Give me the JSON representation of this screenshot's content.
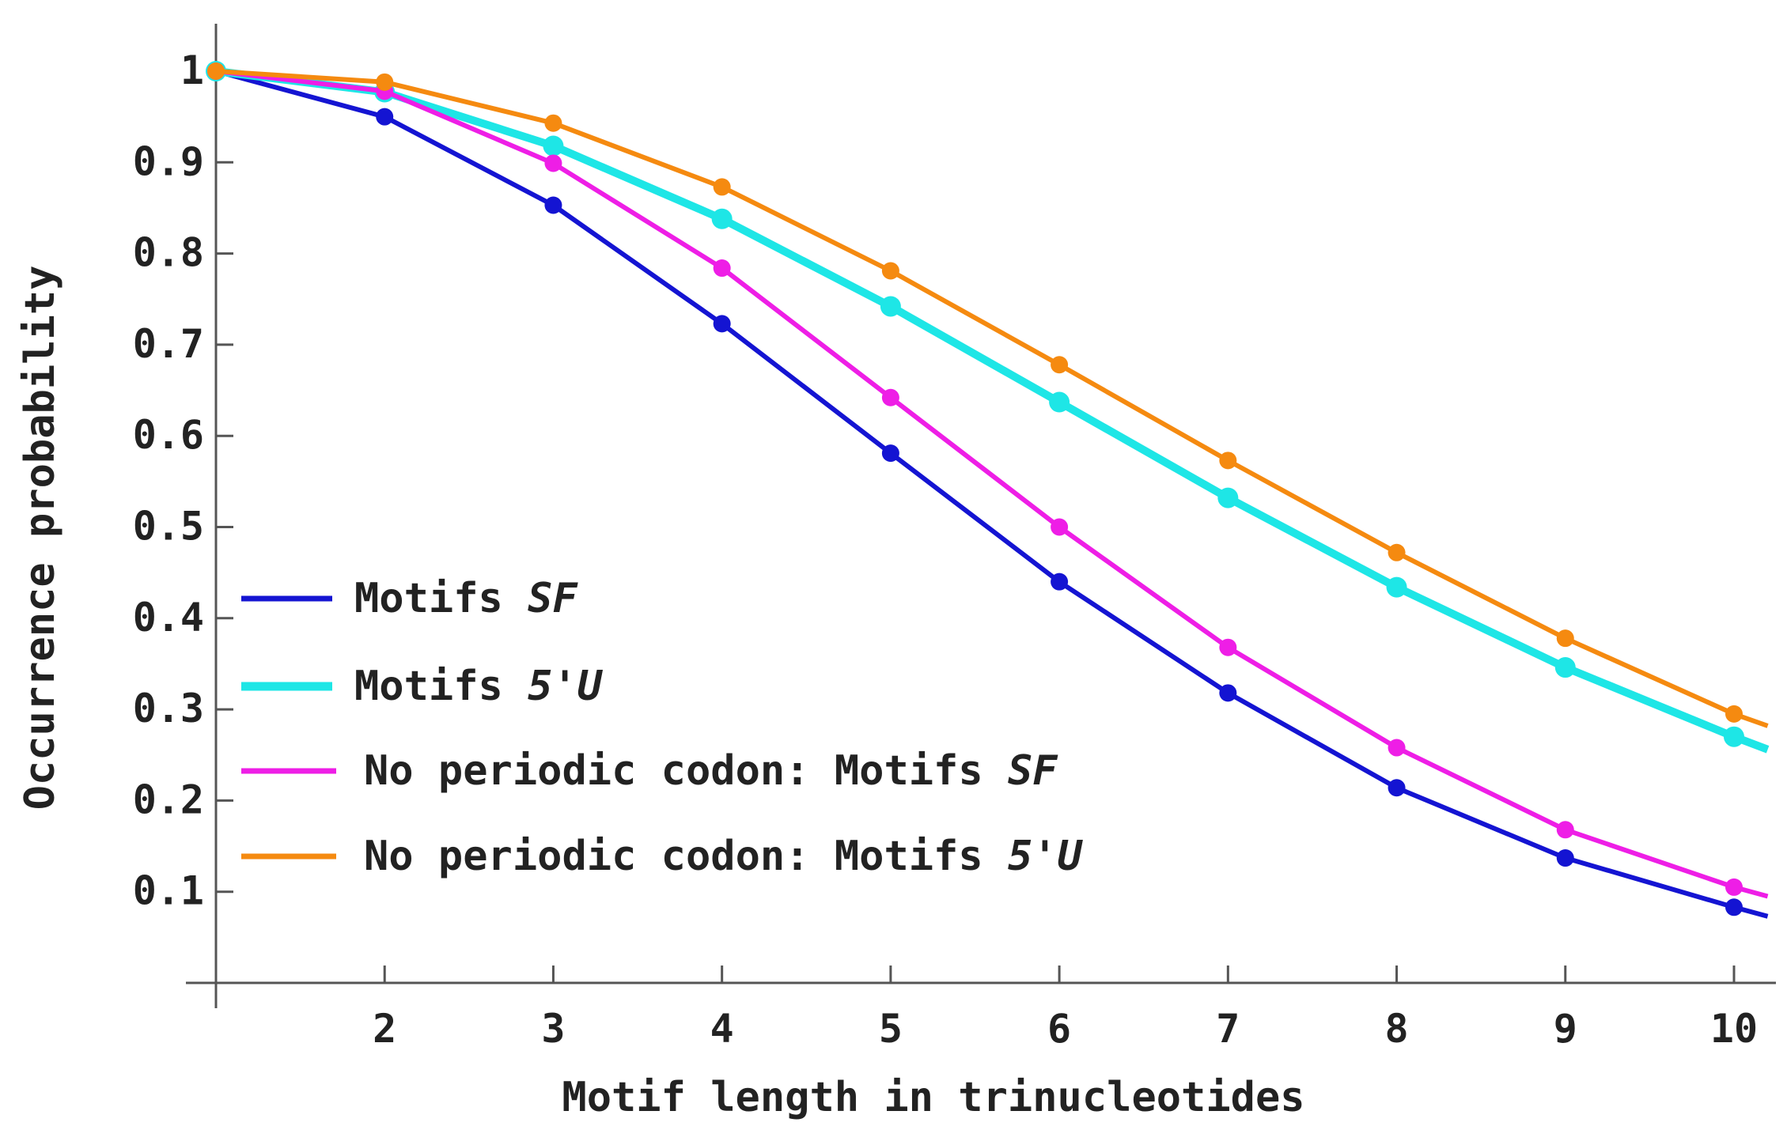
{
  "chart_data": {
    "type": "line",
    "title": "",
    "xlabel": "Motif length in trinucleotides",
    "ylabel": "Occurrence probability",
    "xlim": [
      1,
      10.2
    ],
    "ylim": [
      0,
      1.05
    ],
    "x": [
      1,
      2,
      3,
      4,
      5,
      6,
      7,
      8,
      9,
      10
    ],
    "x_ticks": [
      2,
      3,
      4,
      5,
      6,
      7,
      8,
      9,
      10
    ],
    "x_tick_labels": [
      "2",
      "3",
      "4",
      "5",
      "6",
      "7",
      "8",
      "9",
      "10"
    ],
    "y_ticks": [
      0.1,
      0.2,
      0.3,
      0.4,
      0.5,
      0.6,
      0.7,
      0.8,
      0.9,
      1.0
    ],
    "y_tick_labels": [
      "0.1",
      "0.2",
      "0.3",
      "0.4",
      "0.5",
      "0.6",
      "0.7",
      "0.8",
      "0.9",
      "1"
    ],
    "grid": false,
    "legend_position": "bottom-left",
    "series": [
      {
        "name": "Motifs SF",
        "legend_plain": "Motifs ",
        "legend_italic": "SF",
        "color": "#1414d2",
        "values": [
          1.0,
          0.95,
          0.853,
          0.723,
          0.581,
          0.44,
          0.318,
          0.214,
          0.137,
          0.083
        ],
        "end_value": 0.073
      },
      {
        "name": "Motifs 5'U",
        "legend_plain": "Motifs ",
        "legend_italic": "5'U",
        "color": "#1ee6e6",
        "values": [
          1.0,
          0.977,
          0.918,
          0.838,
          0.742,
          0.637,
          0.532,
          0.434,
          0.346,
          0.27
        ],
        "end_value": 0.256
      },
      {
        "name": "No periodic codon: Motifs SF",
        "legend_plain": "No periodic codon: Motifs ",
        "legend_italic": "SF",
        "color": "#ee1ee6",
        "values": [
          1.0,
          0.978,
          0.899,
          0.784,
          0.642,
          0.5,
          0.368,
          0.258,
          0.168,
          0.105
        ],
        "end_value": 0.095
      },
      {
        "name": "No periodic codon: Motifs 5'U",
        "legend_plain": "No periodic codon: Motifs ",
        "legend_italic": "5'U",
        "color": "#f58a10",
        "values": [
          1.0,
          0.988,
          0.943,
          0.873,
          0.781,
          0.678,
          0.573,
          0.472,
          0.378,
          0.295
        ],
        "end_value": 0.282
      }
    ]
  }
}
